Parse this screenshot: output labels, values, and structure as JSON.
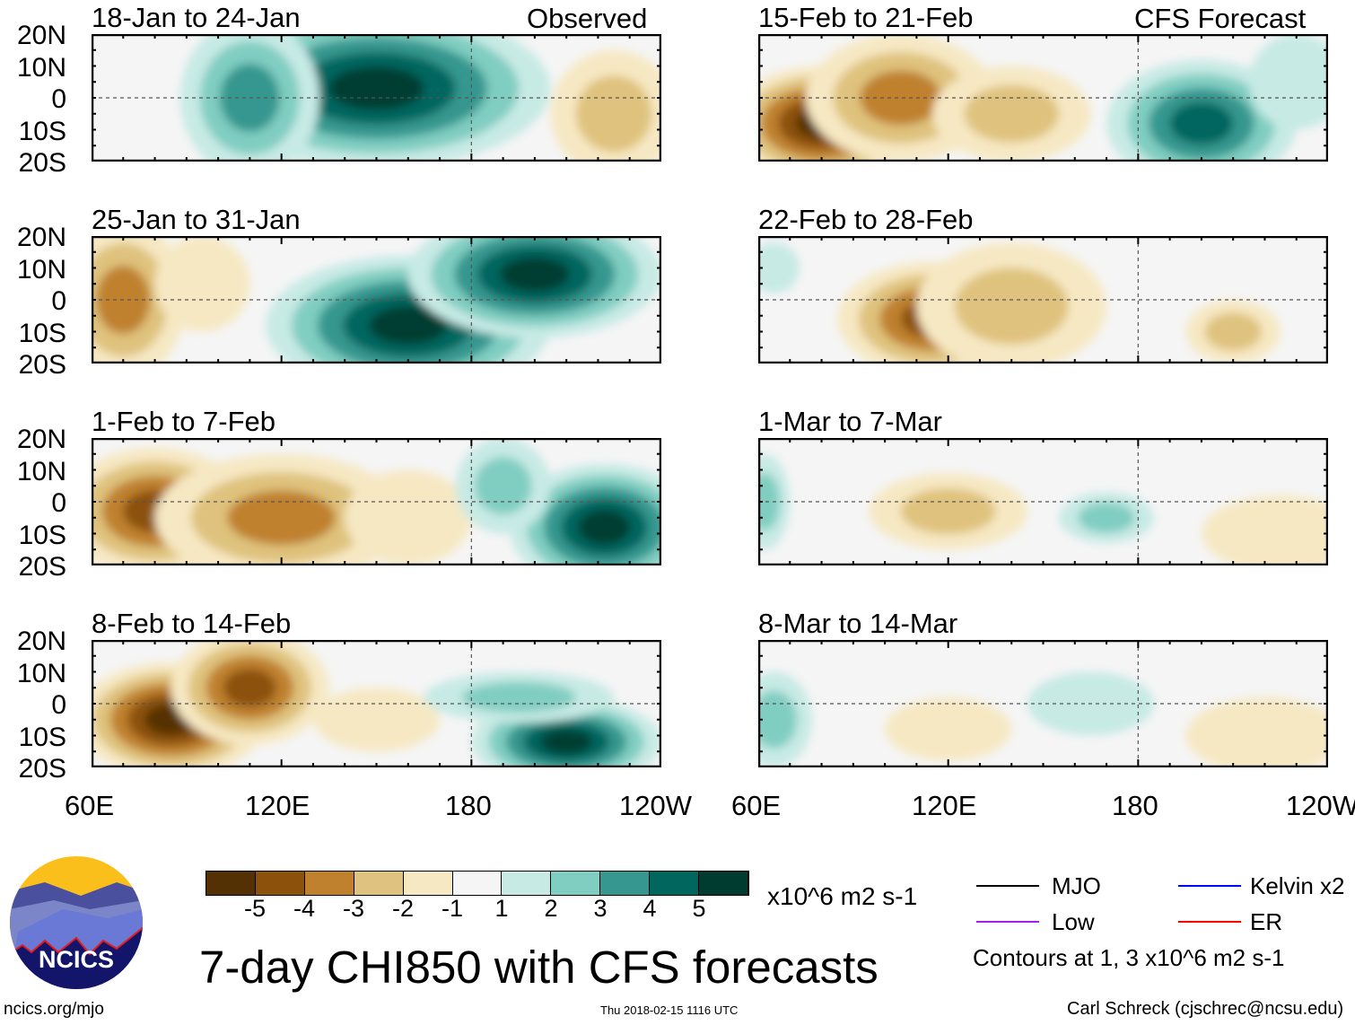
{
  "figure": {
    "title": "7-day CHI850 with CFS forecasts",
    "url": "ncics.org/mjo",
    "timestamp": "Thu 2018-02-15 1116 UTC",
    "author": "Carl Schreck (cjschrec@ncsu.edu)",
    "logo_text": "NCICS"
  },
  "labels": {
    "observed": "Observed",
    "forecast": "CFS Forecast"
  },
  "lat_labels": [
    "20N",
    "10N",
    "0",
    "10S",
    "20S"
  ],
  "lon_labels": [
    "60E",
    "120E",
    "180",
    "120W"
  ],
  "colorbar": {
    "colors": [
      "#543005",
      "#8c510a",
      "#bf812d",
      "#dfc27d",
      "#f6e8c3",
      "#f5f5f5",
      "#c7eae5",
      "#80cdc1",
      "#35978f",
      "#01665e",
      "#003c30"
    ],
    "ticks": [
      "-5",
      "-4",
      "-3",
      "-2",
      "-1",
      "1",
      "2",
      "3",
      "4",
      "5"
    ],
    "units": "x10^6 m2 s-1"
  },
  "legend": {
    "items": [
      {
        "label": "MJO",
        "color": "#000000"
      },
      {
        "label": "Kelvin x2",
        "color": "#0000ff"
      },
      {
        "label": "Low",
        "color": "#a020f0"
      },
      {
        "label": "ER",
        "color": "#ff0000"
      }
    ],
    "note": "Contours at 1, 3 x10^6 m2 s-1"
  },
  "chart_data": {
    "type": "heatmap",
    "lon_range": [
      60,
      240
    ],
    "lat_range": [
      -20,
      20
    ],
    "panels": [
      {
        "title": "18-Jan to 24-Jan",
        "kind": "observed",
        "blobs": [
          [
            150,
            3,
            55,
            25,
            5
          ],
          [
            110,
            0,
            22,
            25,
            3
          ],
          [
            225,
            -5,
            20,
            20,
            -2
          ]
        ]
      },
      {
        "title": "25-Jan to 31-Jan",
        "kind": "observed",
        "blobs": [
          [
            160,
            -8,
            45,
            22,
            5
          ],
          [
            200,
            8,
            40,
            20,
            5
          ],
          [
            70,
            0,
            20,
            25,
            -3
          ],
          [
            95,
            5,
            15,
            15,
            -1
          ]
        ]
      },
      {
        "title": "1-Feb to 7-Feb",
        "kind": "observed",
        "blobs": [
          [
            80,
            -3,
            30,
            20,
            -4
          ],
          [
            120,
            -5,
            40,
            20,
            -3
          ],
          [
            160,
            -5,
            20,
            15,
            -1
          ],
          [
            222,
            -8,
            30,
            20,
            5
          ],
          [
            190,
            5,
            15,
            15,
            2
          ]
        ]
      },
      {
        "title": "8-Feb to 14-Feb",
        "kind": "observed",
        "blobs": [
          [
            85,
            -5,
            30,
            18,
            -5
          ],
          [
            110,
            5,
            25,
            18,
            -4
          ],
          [
            150,
            -5,
            20,
            10,
            -1
          ],
          [
            210,
            -12,
            30,
            14,
            5
          ],
          [
            195,
            2,
            30,
            8,
            2
          ]
        ]
      },
      {
        "title": "15-Feb to 21-Feb",
        "kind": "forecast",
        "blobs": [
          [
            80,
            -8,
            30,
            18,
            -5
          ],
          [
            105,
            0,
            30,
            20,
            -3
          ],
          [
            140,
            -5,
            25,
            15,
            -2
          ],
          [
            200,
            -8,
            30,
            20,
            4
          ],
          [
            230,
            5,
            15,
            15,
            1
          ]
        ]
      },
      {
        "title": "22-Feb to 28-Feb",
        "kind": "forecast",
        "blobs": [
          [
            115,
            -6,
            30,
            18,
            -4
          ],
          [
            140,
            -2,
            30,
            20,
            -2
          ],
          [
            210,
            -10,
            15,
            10,
            -2
          ],
          [
            65,
            10,
            8,
            8,
            1
          ]
        ]
      },
      {
        "title": "1-Mar to 7-Mar",
        "kind": "forecast",
        "blobs": [
          [
            120,
            -3,
            25,
            12,
            -2
          ],
          [
            170,
            -5,
            15,
            8,
            2
          ],
          [
            62,
            0,
            8,
            15,
            2
          ],
          [
            225,
            -10,
            25,
            12,
            -1
          ]
        ]
      },
      {
        "title": "8-Mar to 14-Mar",
        "kind": "forecast",
        "blobs": [
          [
            65,
            -5,
            12,
            15,
            2
          ],
          [
            120,
            -8,
            20,
            10,
            -1
          ],
          [
            165,
            0,
            20,
            10,
            1
          ],
          [
            220,
            -10,
            25,
            12,
            -1
          ]
        ]
      }
    ]
  }
}
